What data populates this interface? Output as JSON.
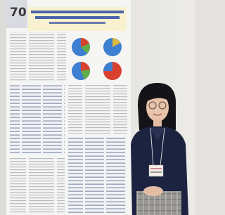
{
  "poster": {
    "number": "70"
  }
}
